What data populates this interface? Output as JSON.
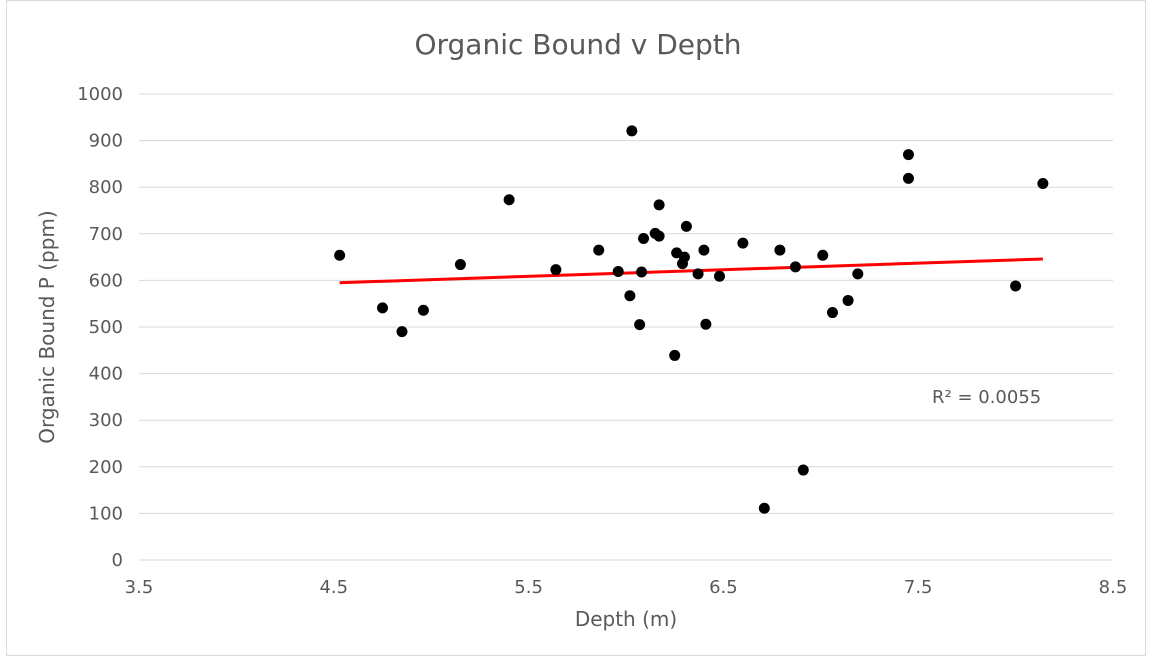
{
  "chart_data": {
    "type": "scatter",
    "title": "Organic Bound v Depth",
    "xlabel": "Depth (m)",
    "ylabel": "Organic Bound P (ppm)",
    "xlim": [
      3.5,
      8.5
    ],
    "ylim": [
      0,
      1000
    ],
    "xticks": [
      "3.5",
      "4.5",
      "5.5",
      "6.5",
      "7.5",
      "8.5"
    ],
    "yticks": [
      "0",
      "100",
      "200",
      "300",
      "400",
      "500",
      "600",
      "700",
      "800",
      "900",
      "1000"
    ],
    "grid": true,
    "legend": "none",
    "colors": {
      "points": "#000000",
      "trendline": "#ff0000",
      "grid": "#d9d9d9",
      "text": "#595959"
    },
    "series": [
      {
        "points": [
          {
            "x": 4.53,
            "y": 654
          },
          {
            "x": 4.75,
            "y": 541
          },
          {
            "x": 4.85,
            "y": 490
          },
          {
            "x": 4.96,
            "y": 536
          },
          {
            "x": 5.15,
            "y": 634
          },
          {
            "x": 5.4,
            "y": 773
          },
          {
            "x": 5.64,
            "y": 623
          },
          {
            "x": 5.86,
            "y": 665
          },
          {
            "x": 5.96,
            "y": 619
          },
          {
            "x": 6.02,
            "y": 567
          },
          {
            "x": 6.03,
            "y": 921
          },
          {
            "x": 6.07,
            "y": 505
          },
          {
            "x": 6.08,
            "y": 618
          },
          {
            "x": 6.09,
            "y": 690
          },
          {
            "x": 6.15,
            "y": 701
          },
          {
            "x": 6.17,
            "y": 695
          },
          {
            "x": 6.17,
            "y": 762
          },
          {
            "x": 6.25,
            "y": 439
          },
          {
            "x": 6.26,
            "y": 659
          },
          {
            "x": 6.29,
            "y": 636
          },
          {
            "x": 6.3,
            "y": 650
          },
          {
            "x": 6.31,
            "y": 716
          },
          {
            "x": 6.37,
            "y": 614
          },
          {
            "x": 6.4,
            "y": 665
          },
          {
            "x": 6.41,
            "y": 506
          },
          {
            "x": 6.48,
            "y": 609
          },
          {
            "x": 6.6,
            "y": 680
          },
          {
            "x": 6.71,
            "y": 111
          },
          {
            "x": 6.79,
            "y": 665
          },
          {
            "x": 6.87,
            "y": 629
          },
          {
            "x": 6.91,
            "y": 193
          },
          {
            "x": 7.01,
            "y": 654
          },
          {
            "x": 7.06,
            "y": 531
          },
          {
            "x": 7.14,
            "y": 557
          },
          {
            "x": 7.19,
            "y": 614
          },
          {
            "x": 7.45,
            "y": 870
          },
          {
            "x": 7.45,
            "y": 819
          },
          {
            "x": 8.0,
            "y": 588
          },
          {
            "x": 8.14,
            "y": 808
          }
        ]
      }
    ],
    "trendline": {
      "type": "linear",
      "x_start": 4.53,
      "y_start": 595,
      "x_end": 8.14,
      "y_end": 646,
      "r2_label": "R² = 0.0055"
    }
  }
}
